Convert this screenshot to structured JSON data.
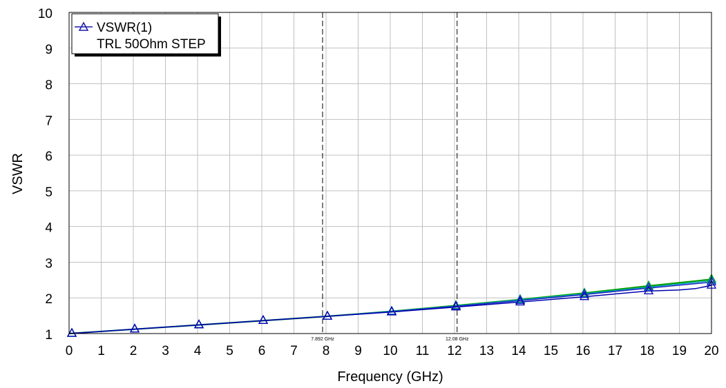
{
  "chart_data": {
    "type": "line",
    "xlabel": "Frequency (GHz)",
    "ylabel": "VSWR",
    "xlim": [
      0,
      20
    ],
    "ylim": [
      1,
      10
    ],
    "xticks": [
      "0",
      "1",
      "2",
      "3",
      "4",
      "5",
      "6",
      "7",
      "8",
      "9",
      "10",
      "11",
      "12",
      "13",
      "14",
      "15",
      "16",
      "17",
      "18",
      "19",
      "20"
    ],
    "yticks": [
      "1",
      "2",
      "3",
      "4",
      "5",
      "6",
      "7",
      "8",
      "9",
      "10"
    ],
    "grid": true,
    "legend": {
      "placement": "top-left",
      "entries": [
        "VSWR(1)",
        "TRL 50Ohm STEP"
      ]
    },
    "markers": [
      {
        "x": 7.892,
        "label": "7.892 GHz"
      },
      {
        "x": 12.08,
        "label": "12.08 GHz"
      }
    ],
    "series": [
      {
        "name": "VSWR(1)",
        "color": "#00a000",
        "x": [
          0,
          2,
          4,
          6,
          8,
          10,
          12,
          14,
          16,
          18,
          20
        ],
        "y": [
          1.0,
          1.12,
          1.24,
          1.36,
          1.48,
          1.62,
          1.78,
          1.95,
          2.13,
          2.33,
          2.52
        ]
      },
      {
        "color": "#00a0c0",
        "x": [
          0,
          2,
          4,
          6,
          8,
          10,
          12,
          14,
          16,
          18,
          20
        ],
        "y": [
          1.0,
          1.12,
          1.24,
          1.36,
          1.48,
          1.62,
          1.77,
          1.94,
          2.11,
          2.3,
          2.48
        ]
      },
      {
        "color": "#2020c0",
        "x": [
          0,
          2,
          4,
          6,
          8,
          10,
          12,
          14,
          16,
          18,
          20
        ],
        "y": [
          1.0,
          1.12,
          1.24,
          1.36,
          1.48,
          1.61,
          1.76,
          1.92,
          2.09,
          2.27,
          2.44
        ]
      },
      {
        "color": "#0000b0",
        "x": [
          0,
          2,
          4,
          6,
          8,
          10,
          12,
          14,
          16,
          18,
          19,
          19.5,
          20
        ],
        "y": [
          1.0,
          1.12,
          1.24,
          1.36,
          1.48,
          1.6,
          1.74,
          1.88,
          2.03,
          2.19,
          2.22,
          2.26,
          2.35
        ]
      }
    ],
    "triangle_marker_x": [
      0,
      2,
      4,
      6,
      8,
      10,
      12,
      14,
      16,
      18,
      20
    ]
  }
}
